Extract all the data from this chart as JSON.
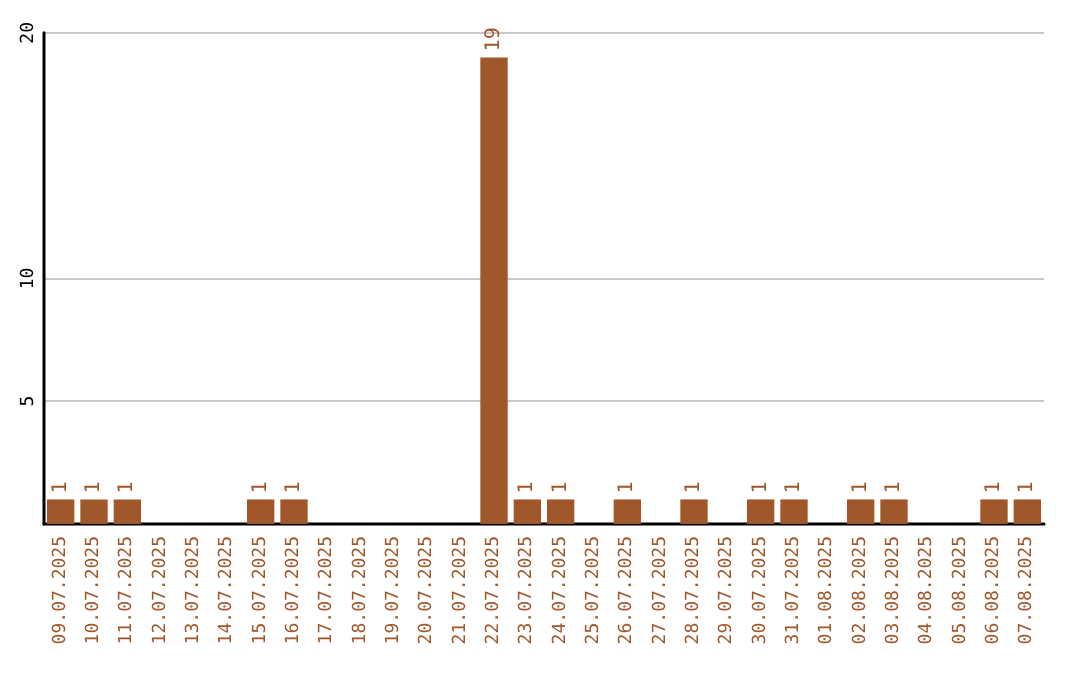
{
  "chart_data": {
    "type": "bar",
    "categories": [
      "09.07.2025",
      "10.07.2025",
      "11.07.2025",
      "12.07.2025",
      "13.07.2025",
      "14.07.2025",
      "15.07.2025",
      "16.07.2025",
      "17.07.2025",
      "18.07.2025",
      "19.07.2025",
      "20.07.2025",
      "21.07.2025",
      "22.07.2025",
      "23.07.2025",
      "24.07.2025",
      "25.07.2025",
      "26.07.2025",
      "27.07.2025",
      "28.07.2025",
      "29.07.2025",
      "30.07.2025",
      "31.07.2025",
      "01.08.2025",
      "02.08.2025",
      "03.08.2025",
      "04.08.2025",
      "05.08.2025",
      "06.08.2025",
      "07.08.2025"
    ],
    "values": [
      1,
      1,
      1,
      0,
      0,
      0,
      1,
      1,
      0,
      0,
      0,
      0,
      0,
      19,
      1,
      1,
      0,
      1,
      0,
      1,
      0,
      1,
      1,
      0,
      1,
      1,
      0,
      0,
      1,
      1
    ],
    "value_labels": [
      "1",
      "1",
      "1",
      null,
      null,
      null,
      "1",
      "1",
      null,
      null,
      null,
      null,
      null,
      "19",
      "1",
      "1",
      null,
      "1",
      null,
      "1",
      null,
      "1",
      "1",
      null,
      "1",
      "1",
      null,
      null,
      "1",
      "1"
    ],
    "color": "#a0572a",
    "ylim": [
      0,
      20
    ],
    "yticks": [
      5,
      10,
      20
    ],
    "grid": "y"
  }
}
